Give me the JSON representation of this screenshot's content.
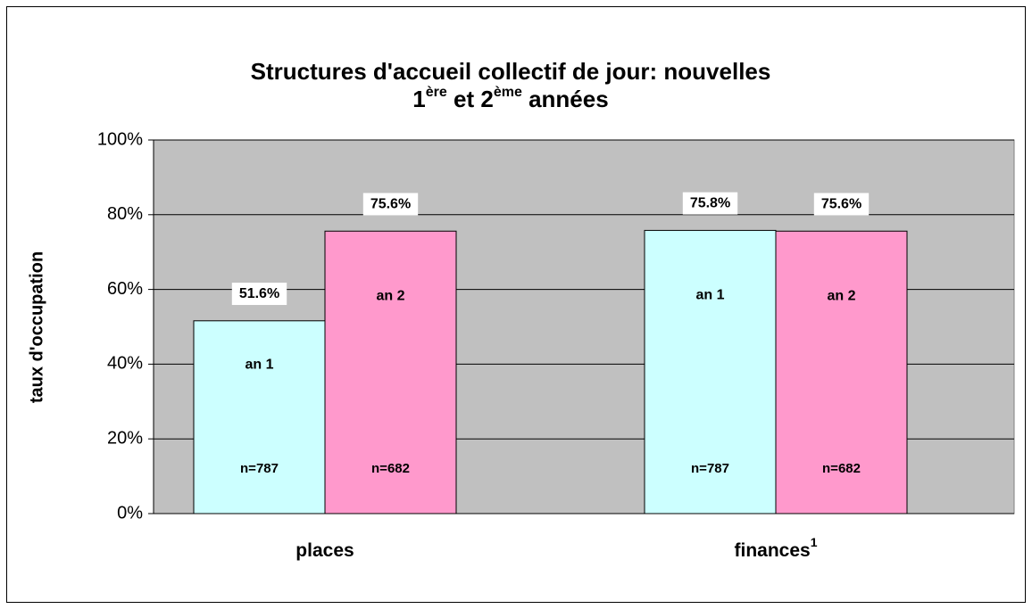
{
  "chart_data": {
    "type": "bar",
    "title": {
      "line1": "Structures d'accueil collectif de jour: nouvelles",
      "line2": [
        "1",
        "ère",
        " et 2",
        "ème",
        " années"
      ]
    },
    "y_label": "taux d'occupation",
    "categories": [
      "places",
      "finances"
    ],
    "category_notes": [
      null,
      "1"
    ],
    "series": [
      {
        "name": "an 1",
        "color": "#ccffff",
        "values": [
          51.6,
          75.8
        ],
        "value_labels": [
          "51.6%",
          "75.8%"
        ],
        "n_labels": [
          "n=787",
          "n=787"
        ]
      },
      {
        "name": "an 2",
        "color": "#ff99cc",
        "values": [
          75.6,
          75.6
        ],
        "value_labels": [
          "75.6%",
          "75.6%"
        ],
        "n_labels": [
          "n=682",
          "n=682"
        ]
      }
    ],
    "ylim": [
      0,
      100
    ],
    "yticks": [
      {
        "value": 0,
        "label": "0%"
      },
      {
        "value": 20,
        "label": "20%"
      },
      {
        "value": 40,
        "label": "40%"
      },
      {
        "value": 60,
        "label": "60%"
      },
      {
        "value": 80,
        "label": "80%"
      },
      {
        "value": 100,
        "label": "100%"
      }
    ],
    "grid": true
  }
}
